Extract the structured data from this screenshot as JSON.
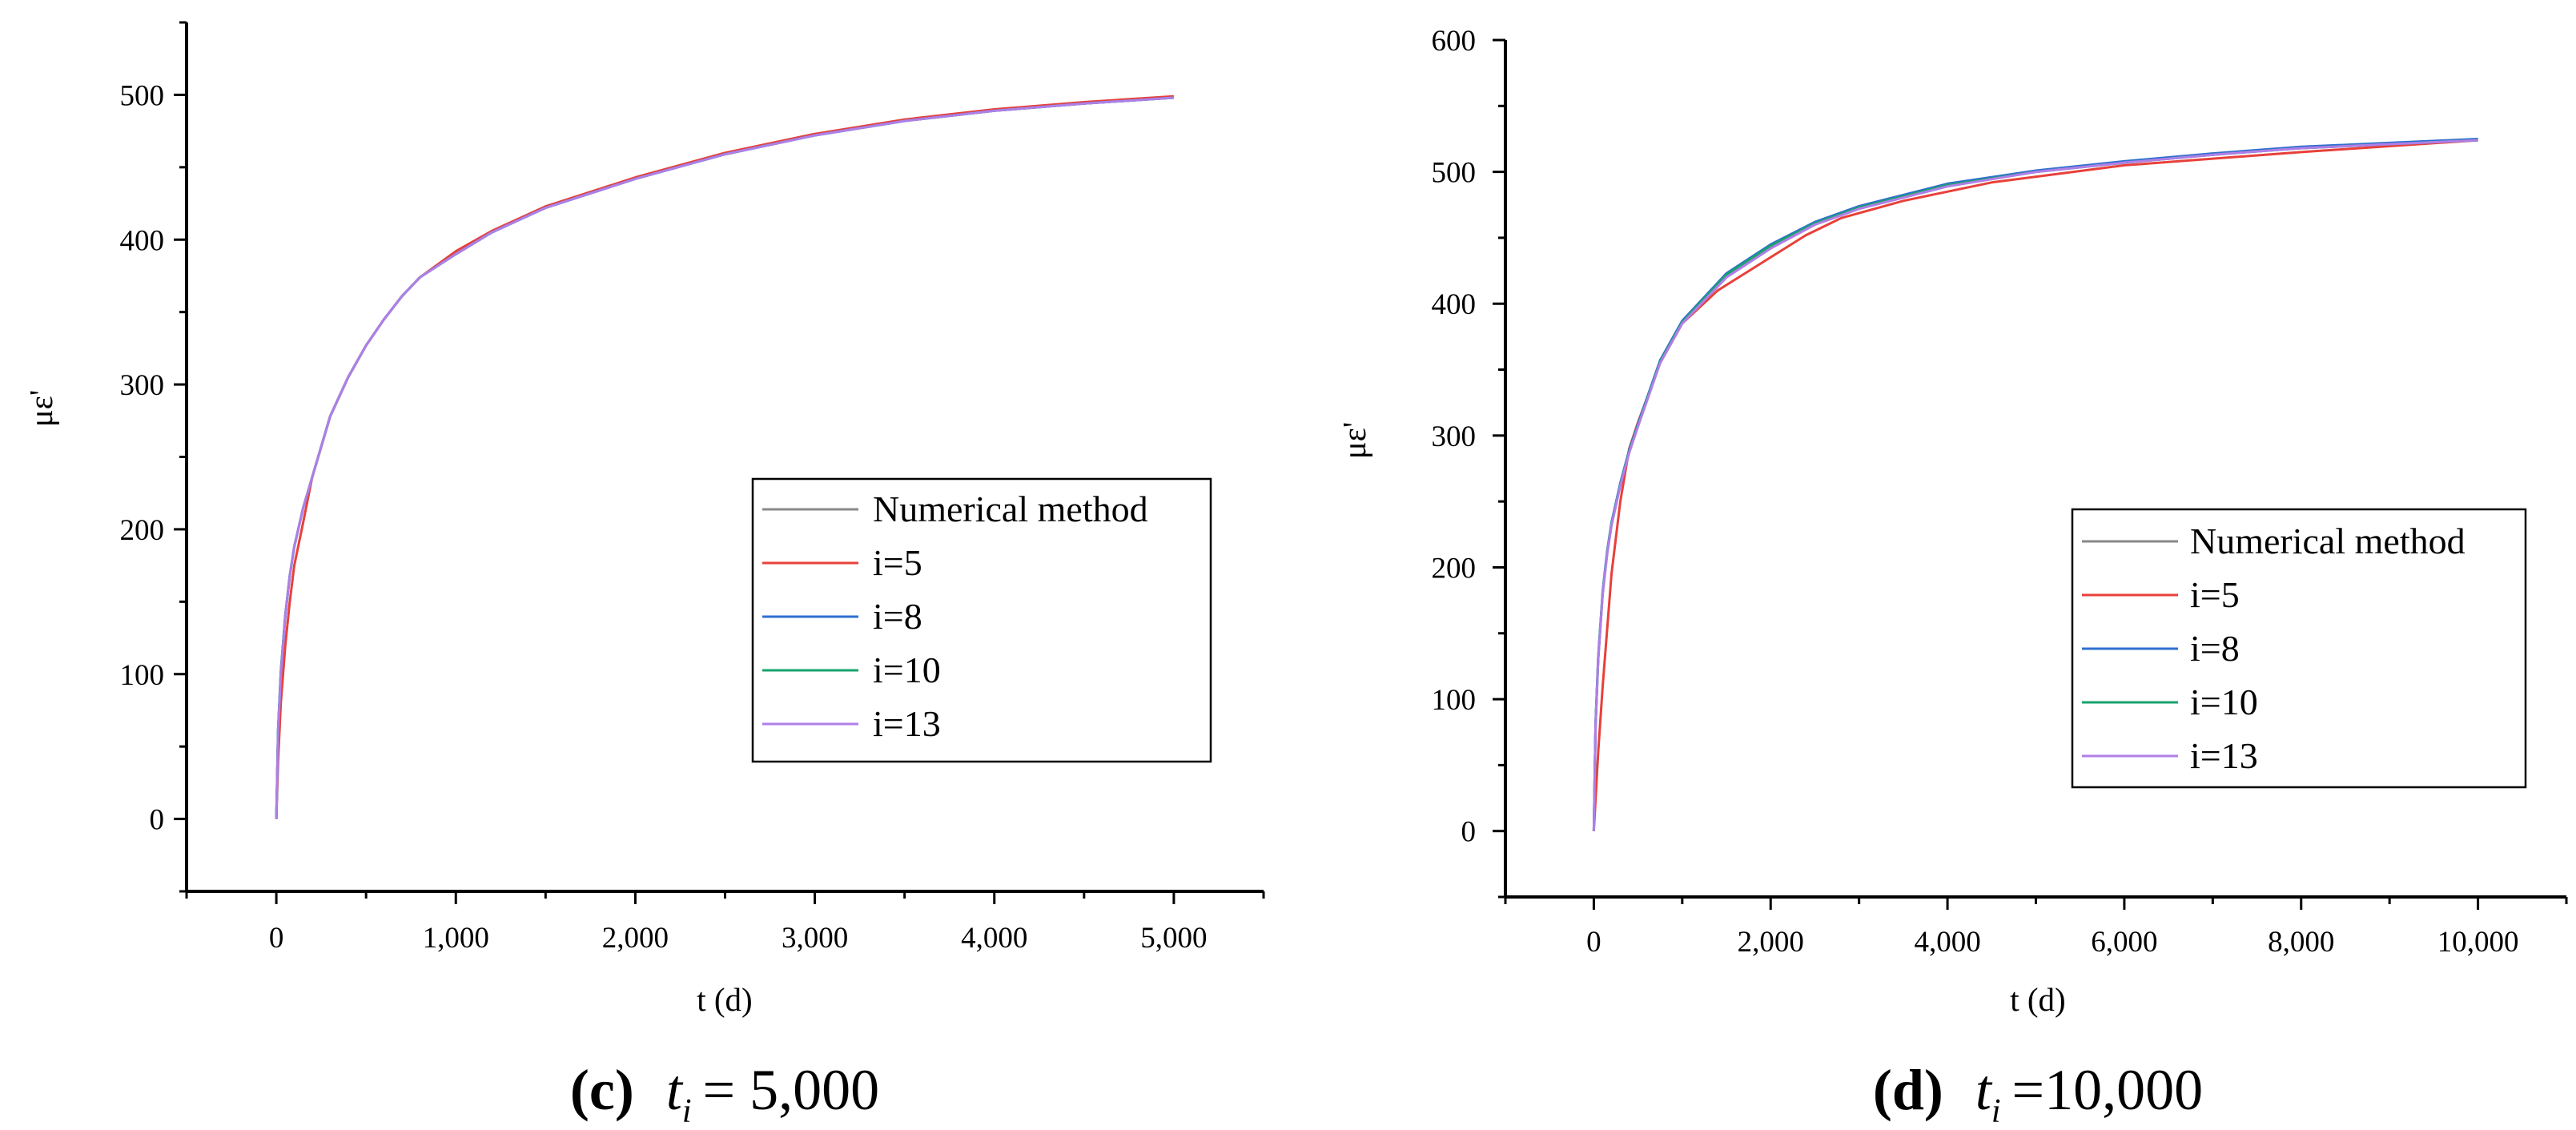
{
  "chart_data": [
    {
      "type": "line",
      "panel": "c",
      "caption": {
        "label": "(c)",
        "lhs": "t",
        "sub": "i",
        "rhs": "= 5,000"
      },
      "xlabel": "t (d)",
      "ylabel": "με'",
      "xlim": [
        -500,
        5500
      ],
      "ylim": [
        -50,
        550
      ],
      "xticks": [
        0,
        1000,
        2000,
        3000,
        4000,
        5000
      ],
      "xtick_labels": [
        "0",
        "1,000",
        "2,000",
        "3,000",
        "4,000",
        "5,000"
      ],
      "yticks": [
        0,
        100,
        200,
        300,
        400,
        500
      ],
      "ytick_labels": [
        "0",
        "100",
        "200",
        "300",
        "400",
        "500"
      ],
      "legend": {
        "position": "right-middle",
        "entries": [
          "Numerical method",
          "i=5",
          "i=8",
          "i=10",
          "i=13"
        ]
      },
      "series": [
        {
          "name": "Numerical method",
          "color": "#888888",
          "x": [
            0,
            10,
            25,
            50,
            75,
            100,
            150,
            200,
            300,
            400,
            500,
            600,
            700,
            800,
            1000,
            1200,
            1500,
            2000,
            2500,
            3000,
            3500,
            4000,
            4500,
            5000
          ],
          "y": [
            0,
            60,
            100,
            140,
            168,
            188,
            215,
            236,
            278,
            305,
            327,
            345,
            361,
            374,
            390,
            405,
            422,
            442,
            459,
            472,
            482,
            489,
            494,
            498
          ]
        },
        {
          "name": "i=5",
          "color": "#e8403a",
          "x": [
            0,
            10,
            25,
            50,
            75,
            100,
            150,
            200,
            300,
            400,
            500,
            600,
            700,
            800,
            1000,
            1200,
            1500,
            2000,
            2500,
            3000,
            3500,
            4000,
            4500,
            5000
          ],
          "y": [
            0,
            40,
            80,
            120,
            150,
            175,
            205,
            236,
            278,
            305,
            327,
            345,
            361,
            374,
            392,
            406,
            423,
            443,
            460,
            473,
            483,
            490,
            495,
            499
          ]
        },
        {
          "name": "i=8",
          "color": "#2e6fd0",
          "x": [
            0,
            10,
            25,
            50,
            75,
            100,
            150,
            200,
            300,
            400,
            500,
            600,
            700,
            800,
            1000,
            1200,
            1500,
            2000,
            2500,
            3000,
            3500,
            4000,
            4500,
            5000
          ],
          "y": [
            0,
            62,
            102,
            141,
            168,
            188,
            215,
            236,
            278,
            305,
            327,
            345,
            361,
            374,
            390,
            405,
            422,
            442,
            459,
            472,
            482,
            489,
            494,
            498
          ]
        },
        {
          "name": "i=10",
          "color": "#17a36b",
          "x": [
            0,
            10,
            25,
            50,
            75,
            100,
            150,
            200,
            300,
            400,
            500,
            600,
            700,
            800,
            1000,
            1200,
            1500,
            2000,
            2500,
            3000,
            3500,
            4000,
            4500,
            5000
          ],
          "y": [
            0,
            61,
            101,
            140,
            168,
            188,
            215,
            236,
            278,
            305,
            327,
            345,
            361,
            374,
            390,
            405,
            422,
            442,
            459,
            472,
            482,
            489,
            494,
            498
          ]
        },
        {
          "name": "i=13",
          "color": "#b07ee8",
          "x": [
            0,
            10,
            25,
            50,
            75,
            100,
            150,
            200,
            300,
            400,
            500,
            600,
            700,
            800,
            1000,
            1200,
            1500,
            2000,
            2500,
            3000,
            3500,
            4000,
            4500,
            5000
          ],
          "y": [
            0,
            60,
            100,
            140,
            168,
            188,
            215,
            236,
            278,
            305,
            327,
            345,
            361,
            374,
            390,
            405,
            422,
            442,
            459,
            472,
            482,
            489,
            494,
            498
          ]
        }
      ]
    },
    {
      "type": "line",
      "panel": "d",
      "caption": {
        "label": "(d)",
        "lhs": "t",
        "sub": "i",
        "rhs": "=10,000"
      },
      "xlabel": "t (d)",
      "ylabel": "με'",
      "xlim": [
        -1000,
        11000
      ],
      "ylim": [
        -50,
        600
      ],
      "xticks": [
        0,
        2000,
        4000,
        6000,
        8000,
        10000
      ],
      "xtick_labels": [
        "0",
        "2,000",
        "4,000",
        "6,000",
        "8,000",
        "10,000"
      ],
      "yticks": [
        0,
        100,
        200,
        300,
        400,
        500,
        600
      ],
      "ytick_labels": [
        "0",
        "100",
        "200",
        "300",
        "400",
        "500",
        "600"
      ],
      "legend": {
        "position": "right-middle",
        "entries": [
          "Numerical method",
          "i=5",
          "i=8",
          "i=10",
          "i=13"
        ]
      },
      "series": [
        {
          "name": "Numerical method",
          "color": "#888888",
          "x": [
            0,
            20,
            50,
            100,
            150,
            200,
            300,
            400,
            500,
            750,
            1000,
            1500,
            2000,
            2500,
            3000,
            4000,
            5000,
            6000,
            7000,
            8000,
            9000,
            10000
          ],
          "y": [
            0,
            80,
            130,
            180,
            210,
            232,
            262,
            287,
            307,
            355,
            385,
            420,
            442,
            460,
            472,
            489,
            500,
            507,
            513,
            518,
            521,
            524
          ]
        },
        {
          "name": "i=5",
          "color": "#e8403a",
          "x": [
            0,
            50,
            100,
            200,
            300,
            400,
            500,
            750,
            1000,
            1400,
            2400,
            2800,
            3500,
            4500,
            6000,
            8000,
            10000
          ],
          "y": [
            0,
            60,
            110,
            195,
            250,
            290,
            310,
            355,
            385,
            410,
            452,
            465,
            478,
            492,
            505,
            515,
            524
          ]
        },
        {
          "name": "i=8",
          "color": "#2e6fd0",
          "x": [
            0,
            20,
            50,
            100,
            150,
            200,
            300,
            400,
            500,
            750,
            1000,
            1500,
            2000,
            2500,
            3000,
            4000,
            5000,
            6000,
            7000,
            8000,
            9000,
            10000
          ],
          "y": [
            0,
            82,
            132,
            182,
            212,
            234,
            264,
            289,
            309,
            357,
            387,
            423,
            445,
            462,
            474,
            491,
            501,
            508,
            514,
            519,
            522,
            525
          ]
        },
        {
          "name": "i=10",
          "color": "#17a36b",
          "x": [
            0,
            20,
            50,
            100,
            150,
            200,
            300,
            400,
            500,
            750,
            1000,
            1500,
            2000,
            2500,
            3000,
            4000,
            5000,
            6000,
            7000,
            8000,
            9000,
            10000
          ],
          "y": [
            0,
            81,
            131,
            181,
            211,
            233,
            263,
            288,
            308,
            356,
            386,
            422,
            444,
            461,
            473,
            490,
            500,
            507,
            513,
            518,
            521,
            524
          ]
        },
        {
          "name": "i=13",
          "color": "#b07ee8",
          "x": [
            0,
            20,
            50,
            100,
            150,
            200,
            300,
            400,
            500,
            750,
            1000,
            1500,
            2000,
            2500,
            3000,
            4000,
            5000,
            6000,
            7000,
            8000,
            9000,
            10000
          ],
          "y": [
            0,
            80,
            130,
            180,
            210,
            232,
            262,
            287,
            307,
            355,
            385,
            420,
            442,
            460,
            472,
            489,
            500,
            507,
            513,
            518,
            521,
            524
          ]
        }
      ]
    }
  ]
}
